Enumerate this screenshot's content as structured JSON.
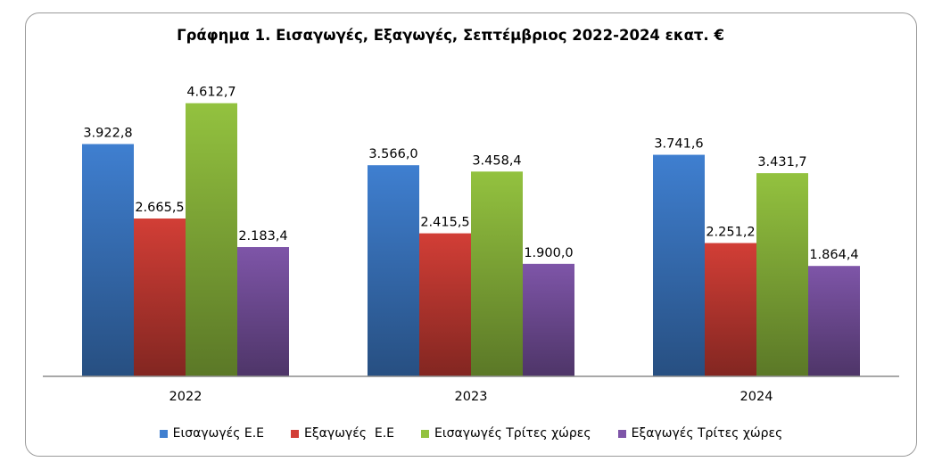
{
  "chart_data": {
    "type": "bar",
    "title": "Γράφημα 1. Εισαγωγές, Εξαγωγές, Σεπτέμβριος 2022-2024 εκατ. €",
    "xlabel": "",
    "ylabel": "",
    "categories": [
      "2022",
      "2023",
      "2024"
    ],
    "series": [
      {
        "name": "Εισαγωγές Ε.Ε",
        "values": [
          3922.8,
          3566.0,
          3741.6
        ],
        "labels": [
          "3.922,8",
          "3.566,0",
          "3.741,6"
        ],
        "color": "#3f7fd0"
      },
      {
        "name": "Εξαγωγές  Ε.Ε",
        "values": [
          2665.5,
          2415.5,
          2251.2
        ],
        "labels": [
          "2.665,5",
          "2.415,5",
          "2.251,2"
        ],
        "color": "#d23e36"
      },
      {
        "name": "Εισαγωγές Τρίτες χώρες",
        "values": [
          4612.7,
          3458.4,
          3431.7
        ],
        "labels": [
          "4.612,7",
          "3.458,4",
          "3.431,7"
        ],
        "color": "#93c23f"
      },
      {
        "name": "Εξαγωγές Τρίτες χώρες",
        "values": [
          2183.4,
          1900.0,
          1864.4
        ],
        "labels": [
          "2.183,4",
          "1.900,0",
          "1.864,4"
        ],
        "color": "#7e55a8"
      }
    ],
    "ylim": [
      0,
      5000
    ],
    "grid": false,
    "legend_position": "bottom"
  }
}
